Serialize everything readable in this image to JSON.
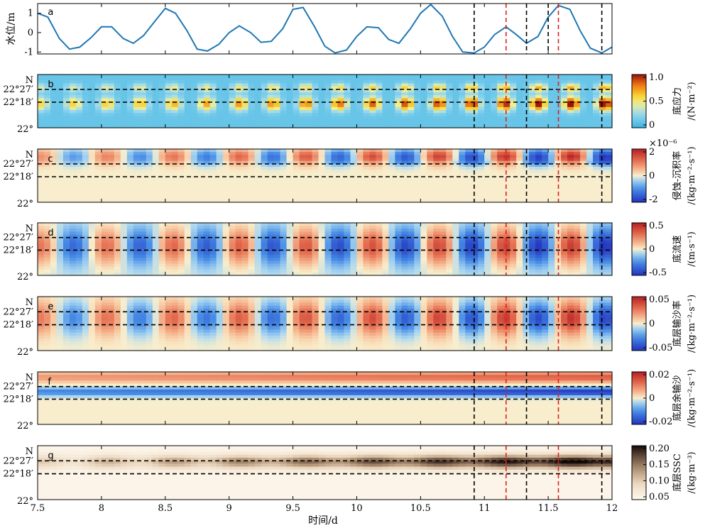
{
  "chart_data": {
    "type": "multi-panel",
    "x_axis": {
      "label": "时间/d",
      "range": [
        7.5,
        12
      ],
      "ticks": [
        7.5,
        8,
        8.5,
        9,
        9.5,
        10,
        10.5,
        11,
        11.5,
        12
      ],
      "tick_labels": [
        "7.5",
        "8",
        "8.5",
        "9",
        "9.5",
        "10",
        "10.5",
        "11",
        "11.5",
        "12"
      ]
    },
    "latitude_ticks": [
      "N",
      "22°27′",
      "22°18′",
      "22°"
    ],
    "panel_a": {
      "letter": "a",
      "type": "line",
      "ylabel": "水位/m",
      "ylim": [
        -1.1,
        1.5
      ],
      "yticks": [
        -1,
        0,
        1
      ],
      "ytick_labels": [
        "-1",
        "0",
        "1"
      ],
      "color": "#1f77b4",
      "x": [
        7.5,
        7.58,
        7.67,
        7.75,
        7.83,
        7.92,
        8.0,
        8.08,
        8.17,
        8.25,
        8.33,
        8.42,
        8.5,
        8.58,
        8.67,
        8.75,
        8.83,
        8.92,
        9.0,
        9.08,
        9.17,
        9.25,
        9.33,
        9.42,
        9.5,
        9.58,
        9.67,
        9.75,
        9.83,
        9.92,
        10.0,
        10.08,
        10.17,
        10.25,
        10.33,
        10.42,
        10.5,
        10.58,
        10.67,
        10.75,
        10.83,
        10.92,
        11.0,
        11.08,
        11.17,
        11.25,
        11.33,
        11.42,
        11.5,
        11.58,
        11.67,
        11.75,
        11.83,
        11.92,
        12.0
      ],
      "y": [
        1.0,
        0.8,
        -0.3,
        -0.85,
        -0.75,
        -0.25,
        0.3,
        0.3,
        -0.3,
        -0.55,
        -0.15,
        0.6,
        1.25,
        1.0,
        0.1,
        -0.85,
        -0.95,
        -0.6,
        0.0,
        0.35,
        0.0,
        -0.5,
        -0.45,
        0.2,
        1.2,
        1.3,
        0.3,
        -0.7,
        -1.05,
        -0.9,
        -0.2,
        0.3,
        0.25,
        -0.35,
        -0.55,
        0.2,
        1.0,
        1.45,
        0.85,
        -0.2,
        -1.0,
        -1.05,
        -0.75,
        -0.1,
        0.3,
        -0.1,
        -0.55,
        -0.2,
        0.8,
        1.4,
        1.2,
        0.1,
        -0.8,
        -1.05,
        -0.75
      ]
    },
    "panels": [
      {
        "letter": "b",
        "field": "bottom_stress",
        "cb_title_line1": "底应力",
        "cb_title_line2": "/(N·m⁻²)",
        "colormap": "jet-ish",
        "clim": [
          0,
          1.0
        ],
        "cb_ticks": [
          "1.0",
          "0.5",
          "0"
        ],
        "exponent": ""
      },
      {
        "letter": "c",
        "field": "erosion_deposition_rate",
        "cb_title_line1": "侵蚀-沉积率",
        "cb_title_line2": "/(kg·m⁻²·s⁻¹)",
        "colormap": "diverging",
        "clim": [
          -2,
          2
        ],
        "cb_ticks": [
          "2",
          "0",
          "-2"
        ],
        "exponent": "×10⁻⁶"
      },
      {
        "letter": "d",
        "field": "bottom_velocity",
        "cb_title_line1": "底流速",
        "cb_title_line2": "/(m·s⁻¹)",
        "colormap": "diverging",
        "clim": [
          -0.6,
          0.7
        ],
        "cb_ticks": [
          "0.5",
          "0",
          "-0.5"
        ],
        "exponent": ""
      },
      {
        "letter": "e",
        "field": "bed_load_transport_rate",
        "cb_title_line1": "底层输沙率",
        "cb_title_line2": "/(kg·m⁻²·s⁻¹)",
        "colormap": "diverging",
        "clim": [
          -0.06,
          0.06
        ],
        "cb_ticks": [
          "0.05",
          "0",
          "-0.05"
        ],
        "exponent": ""
      },
      {
        "letter": "f",
        "field": "residual_bed_transport",
        "cb_title_line1": "底层余输沙",
        "cb_title_line2": "/(kg·m⁻²·s⁻¹)",
        "colormap": "diverging",
        "clim": [
          -0.02,
          0.02
        ],
        "cb_ticks": [
          "0.02",
          "0",
          "-0.02"
        ],
        "exponent": ""
      },
      {
        "letter": "g",
        "field": "bottom_ssc",
        "cb_title_line1": "底层SSC",
        "cb_title_line2": "/(kg·m⁻³)",
        "colormap": "sequential-brown",
        "clim": [
          0.02,
          0.22
        ],
        "cb_ticks": [
          "0.20",
          "0.15",
          "0.10",
          "0.05"
        ],
        "exponent": ""
      }
    ],
    "vertical_markers": {
      "black_dashed": [
        10.92,
        11.33,
        11.92
      ],
      "red_dashed": [
        11.17,
        11.58
      ],
      "black_dashed_panel_a_extra": [
        11.5
      ]
    },
    "horizontal_dashed_lines": [
      "22°27′",
      "22°18′"
    ]
  }
}
